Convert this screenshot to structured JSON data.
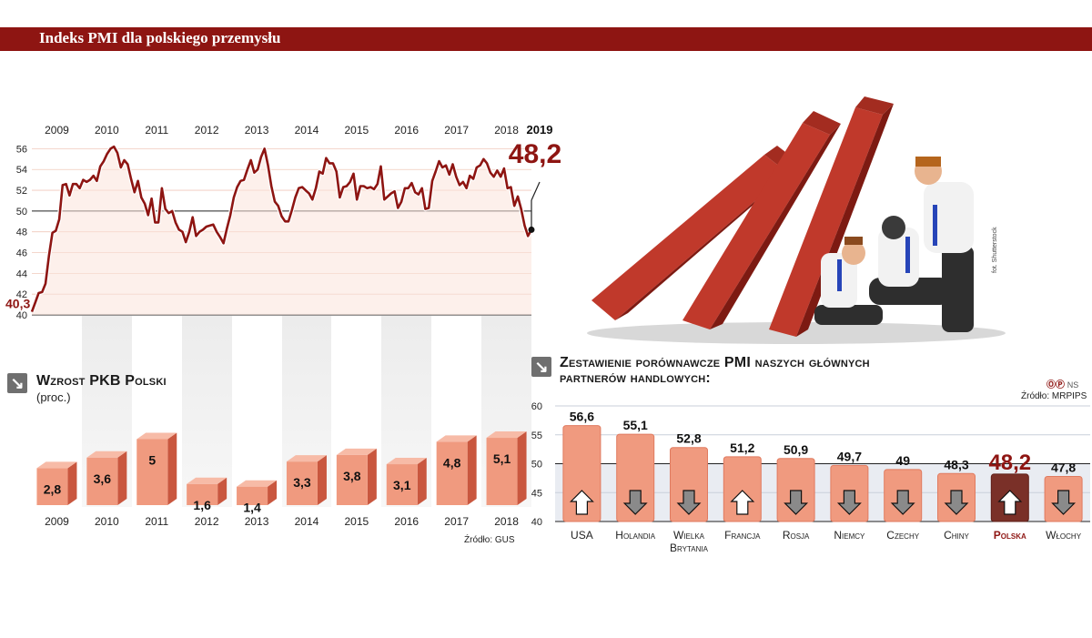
{
  "header": {
    "title": "Indeks PMI dla polskiego przemysłu"
  },
  "colors": {
    "brand": "#8e1512",
    "bar_front": "#f09a7f",
    "bar_side": "#c9573f",
    "bar_top": "#f7bba7",
    "highlight_bar": "#7a3028",
    "arrow_grey": "#8a8a8a"
  },
  "pmi_chart": {
    "start_label": "40,3",
    "end_label": "48,2",
    "end_year_label": "2019",
    "chart_data": {
      "type": "line",
      "series": [
        {
          "values": [
            40.3,
            41.2,
            42.1,
            42.2,
            43.0,
            45.7,
            47.9,
            48.1,
            49.2,
            52.5,
            52.6,
            51.5,
            52.6,
            52.6,
            52.2,
            53.0,
            52.8,
            53.0,
            53.4,
            52.9,
            54.3,
            54.8,
            55.5,
            56.0,
            56.2,
            55.6,
            54.2,
            54.9,
            54.5,
            53.1,
            51.8,
            52.9,
            51.3,
            50.7,
            49.6,
            51.2,
            48.9,
            48.9,
            52.2,
            50.2,
            49.8,
            50.0,
            48.9,
            48.2,
            48.0,
            47.0,
            48.0,
            49.4,
            47.6,
            48.0,
            48.2,
            48.5,
            48.6,
            48.7,
            48.0,
            47.5,
            46.9,
            48.3,
            49.6,
            51.3,
            52.3,
            52.9,
            53.0,
            54.0,
            54.9,
            53.7,
            54.0,
            55.2,
            56.0,
            54.4,
            52.4,
            50.9,
            50.5,
            49.5,
            49.0,
            49.0,
            50.1,
            51.3,
            52.2,
            52.3,
            52.0,
            51.7,
            51.1,
            52.2,
            53.8,
            53.6,
            55.1,
            54.6,
            54.6,
            53.8,
            51.3,
            52.3,
            52.4,
            52.8,
            53.6,
            51.1,
            52.4,
            52.4,
            52.2,
            52.3,
            52.1,
            52.6,
            54.3,
            51.1,
            51.4,
            51.7,
            51.9,
            50.3,
            50.9,
            52.2,
            52.2,
            52.7,
            51.8,
            51.6,
            52.2,
            50.2,
            50.3,
            52.9,
            53.8,
            54.8,
            54.2,
            54.4,
            53.5,
            54.5,
            53.3,
            52.5,
            52.8,
            52.2,
            53.4,
            53.1,
            54.2,
            54.4,
            55.0,
            54.6,
            53.7,
            53.3,
            53.9,
            53.3,
            54.1,
            52.2,
            52.3,
            50.5,
            51.4,
            50.2,
            48.6,
            47.6,
            48.2
          ]
        }
      ],
      "ylim": [
        40,
        57
      ],
      "yticks": [
        40,
        42,
        44,
        46,
        48,
        50,
        52,
        54,
        56
      ],
      "years": [
        "2009",
        "2010",
        "2011",
        "2012",
        "2013",
        "2014",
        "2015",
        "2016",
        "2017",
        "2018"
      ]
    }
  },
  "gdp_chart": {
    "title": "Wzrost PKB Polski",
    "subtitle": "(proc.)",
    "source": "Źródło: GUS",
    "chart_data": {
      "type": "bar",
      "categories": [
        "2009",
        "2010",
        "2011",
        "2012",
        "2013",
        "2014",
        "2015",
        "2016",
        "2017",
        "2018"
      ],
      "values": [
        2.8,
        3.6,
        5,
        1.6,
        1.4,
        3.3,
        3.8,
        3.1,
        4.8,
        5.1
      ],
      "value_labels": [
        "2,8",
        "3,6",
        "5",
        "1,6",
        "1,4",
        "3,3",
        "3,8",
        "3,1",
        "4,8",
        "5,1"
      ]
    }
  },
  "compare_chart": {
    "title_line1": "Zestawienie porównawcze PMI naszych głównych",
    "title_line2": "partnerów handlowych:",
    "credit": "NS",
    "source": "Źródło: MRPIPS",
    "chart_data": {
      "type": "bar",
      "categories": [
        "USA",
        "Holandia",
        "Wielka Brytania",
        "Francja",
        "Rosja",
        "Niemcy",
        "Czechy",
        "Chiny",
        "Polska",
        "Włochy"
      ],
      "category_lines": [
        [
          "USA"
        ],
        [
          "Holandia"
        ],
        [
          "Wielka",
          "Brytania"
        ],
        [
          "Francja"
        ],
        [
          "Rosja"
        ],
        [
          "Niemcy"
        ],
        [
          "Czechy"
        ],
        [
          "Chiny"
        ],
        [
          "Polska"
        ],
        [
          "Włochy"
        ]
      ],
      "values": [
        56.6,
        55.1,
        52.8,
        51.2,
        50.9,
        49.7,
        49,
        48.3,
        48.2,
        47.8
      ],
      "value_labels": [
        "56,6",
        "55,1",
        "52,8",
        "51,2",
        "50,9",
        "49,7",
        "49",
        "48,3",
        "48,2",
        "47,8"
      ],
      "arrows": [
        "up",
        "down",
        "down",
        "up",
        "down",
        "down",
        "down",
        "down",
        "up",
        "down"
      ],
      "highlight": "Polska",
      "ylim": [
        40,
        60
      ],
      "yticks": [
        40,
        45,
        50,
        55,
        60
      ]
    }
  },
  "illustration": {
    "credit": "fot. Shutterstock"
  }
}
